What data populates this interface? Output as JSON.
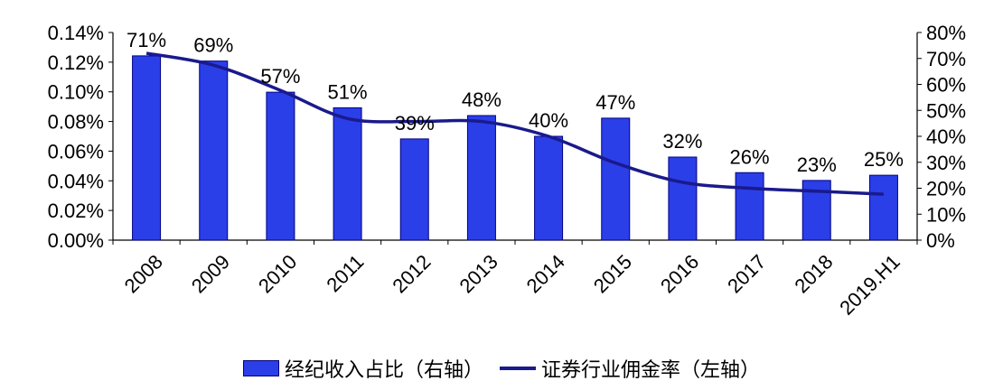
{
  "chart_data": {
    "type": "bar+line",
    "categories": [
      "2008",
      "2009",
      "2010",
      "2011",
      "2012",
      "2013",
      "2014",
      "2015",
      "2016",
      "2017",
      "2018",
      "2019.H1"
    ],
    "series": [
      {
        "name": "经纪收入占比（右轴）",
        "type": "bar",
        "axis": "right",
        "values": [
          71,
          69,
          57,
          51,
          39,
          48,
          40,
          47,
          32,
          26,
          23,
          25
        ],
        "labels": [
          "71%",
          "69%",
          "57%",
          "51%",
          "39%",
          "48%",
          "40%",
          "47%",
          "32%",
          "26%",
          "23%",
          "25%"
        ],
        "color": "#2b3fe8"
      },
      {
        "name": "证券行业佣金率（左轴）",
        "type": "line",
        "axis": "left",
        "values": [
          0.126,
          0.118,
          0.101,
          0.082,
          0.08,
          0.08,
          0.07,
          0.052,
          0.039,
          0.035,
          0.033,
          0.031
        ],
        "color": "#1a1a8c"
      }
    ],
    "left_axis": {
      "ticks": [
        "0.00%",
        "0.02%",
        "0.04%",
        "0.06%",
        "0.08%",
        "0.10%",
        "0.12%",
        "0.14%"
      ],
      "range": [
        0,
        0.14
      ]
    },
    "right_axis": {
      "ticks": [
        "0%",
        "10%",
        "20%",
        "30%",
        "40%",
        "50%",
        "60%",
        "70%",
        "80%"
      ],
      "range": [
        0,
        80
      ]
    },
    "legend_position": "bottom",
    "grid": false
  }
}
